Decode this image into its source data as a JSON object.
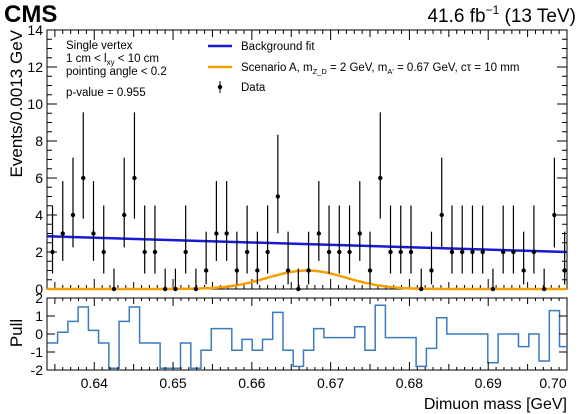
{
  "header": {
    "experiment": "CMS",
    "luminosity_value": "41.6 fb",
    "luminosity_exp": "−1",
    "energy": "(13 TeV)"
  },
  "selection_box": {
    "line1": "Single vertex",
    "line2_pre": "1 cm < l",
    "line2_sub": "xy",
    "line2_post": " < 10 cm",
    "line3": "pointing angle < 0.2",
    "line4": "p-value = 0.955"
  },
  "legend": {
    "background": "Background fit",
    "signal": "Scenario A, m",
    "signal_sub": "Z_D",
    "signal_rest": " = 2 GeV, m",
    "signal_sub2": "A'",
    "signal_tail": " = 0.67 GeV, cτ = 10 mm",
    "data": "Data"
  },
  "colors": {
    "background_fit": "#1a1ad6",
    "signal": "#f5a000",
    "pull": "#3b7bbf",
    "data": "#000000"
  },
  "chart_data": [
    {
      "type": "scatter",
      "title": "",
      "xlabel": "Dimuon mass [GeV]",
      "ylabel": "Events/0.0013 GeV",
      "xlim": [
        0.634,
        0.7
      ],
      "ylim": [
        0,
        14
      ],
      "yticks": [
        0,
        2,
        4,
        6,
        8,
        10,
        12,
        14
      ],
      "xticks": [
        0.64,
        0.65,
        0.66,
        0.67,
        0.68,
        0.69,
        0.7
      ],
      "xtick_labels": [
        "0.64",
        "0.65",
        "0.66",
        "0.67",
        "0.68",
        "0.69",
        "0.70"
      ],
      "series": [
        {
          "name": "Data",
          "x": [
            0.6347,
            0.636,
            0.6373,
            0.6386,
            0.6399,
            0.6412,
            0.6425,
            0.6438,
            0.6451,
            0.6464,
            0.6477,
            0.649,
            0.6503,
            0.6516,
            0.6529,
            0.6542,
            0.6555,
            0.6568,
            0.6581,
            0.6594,
            0.6607,
            0.662,
            0.6633,
            0.6646,
            0.6659,
            0.6672,
            0.6685,
            0.6698,
            0.6711,
            0.6724,
            0.6737,
            0.675,
            0.6763,
            0.6776,
            0.6789,
            0.6802,
            0.6815,
            0.6828,
            0.6841,
            0.6854,
            0.6867,
            0.688,
            0.6893,
            0.6906,
            0.6919,
            0.6932,
            0.6945,
            0.6958,
            0.6971,
            0.6984,
            0.6997
          ],
          "y": [
            2,
            3,
            4,
            6,
            3,
            2,
            0,
            4,
            6,
            2,
            2,
            0,
            0,
            2,
            0,
            1,
            3,
            3,
            1,
            2,
            1,
            2,
            5,
            1,
            0,
            1,
            3,
            2,
            2,
            2,
            3,
            1,
            6,
            2,
            2,
            2,
            0,
            1,
            4,
            2,
            2,
            2,
            2,
            0,
            2,
            2,
            1,
            2,
            0,
            4,
            1
          ]
        },
        {
          "name": "Background fit",
          "x": [
            0.634,
            0.7
          ],
          "y": [
            2.85,
            2.0
          ]
        },
        {
          "name": "Scenario A",
          "peak_x": 0.667,
          "peak_y": 1.0,
          "width": 0.005
        }
      ]
    },
    {
      "type": "bar",
      "ylabel": "Pull",
      "xlim": [
        0.634,
        0.7
      ],
      "ylim": [
        -2,
        2
      ],
      "yticks": [
        -2,
        -1,
        0,
        1,
        2
      ],
      "x": [
        0.6347,
        0.636,
        0.6373,
        0.6386,
        0.6399,
        0.6412,
        0.6425,
        0.6438,
        0.6451,
        0.6464,
        0.6477,
        0.649,
        0.6503,
        0.6516,
        0.6529,
        0.6542,
        0.6555,
        0.6568,
        0.6581,
        0.6594,
        0.6607,
        0.662,
        0.6633,
        0.6646,
        0.6659,
        0.6672,
        0.6685,
        0.6698,
        0.6711,
        0.6724,
        0.6737,
        0.675,
        0.6763,
        0.6776,
        0.6789,
        0.6802,
        0.6815,
        0.6828,
        0.6841,
        0.6854,
        0.6867,
        0.688,
        0.6893,
        0.6906,
        0.6919,
        0.6932,
        0.6945,
        0.6958,
        0.6971,
        0.6984,
        0.6997
      ],
      "values": [
        -0.5,
        0.1,
        0.7,
        1.5,
        0.2,
        -0.5,
        -1.9,
        0.7,
        1.5,
        -0.5,
        -0.5,
        -1.9,
        -1.9,
        -0.5,
        -1.9,
        -0.9,
        0.3,
        0.3,
        -0.9,
        -0.3,
        -0.9,
        -0.3,
        1.2,
        -0.9,
        -1.8,
        -0.9,
        0.3,
        -0.2,
        -0.2,
        -0.2,
        0.4,
        -0.9,
        1.6,
        -0.2,
        -0.2,
        -0.2,
        -1.8,
        -0.8,
        0.9,
        0.0,
        0.0,
        0.0,
        0.0,
        -1.6,
        0.0,
        0.0,
        -0.7,
        0.0,
        -1.5,
        1.3,
        -0.7
      ]
    }
  ]
}
